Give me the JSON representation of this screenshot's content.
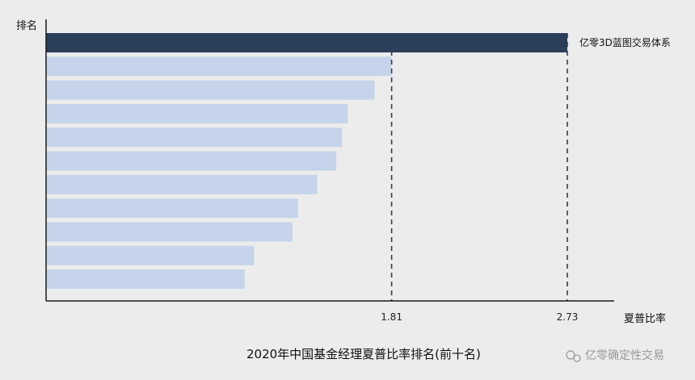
{
  "chart_data": {
    "type": "bar",
    "orientation": "horizontal",
    "title": "2020年中国基金经理夏普比率排名(前十名)",
    "xlabel": "夏普比率",
    "ylabel": "排名",
    "xlim": [
      0,
      3.0
    ],
    "grid": false,
    "values": [
      2.73,
      1.81,
      1.72,
      1.58,
      1.55,
      1.52,
      1.42,
      1.32,
      1.29,
      1.09,
      1.04
    ],
    "highlight_index": 0,
    "highlight_label": "亿零3D蓝图交易体系",
    "reference_lines": [
      {
        "value": 1.81,
        "label": "1.81"
      },
      {
        "value": 2.73,
        "label": "2.73"
      }
    ],
    "colors": {
      "highlight": "#2b3e5a",
      "bar": "#c5d4ea",
      "axis": "#1a1a1a",
      "reference_line": "#2b3e5a"
    }
  },
  "watermark": {
    "text": "亿零确定性交易"
  }
}
